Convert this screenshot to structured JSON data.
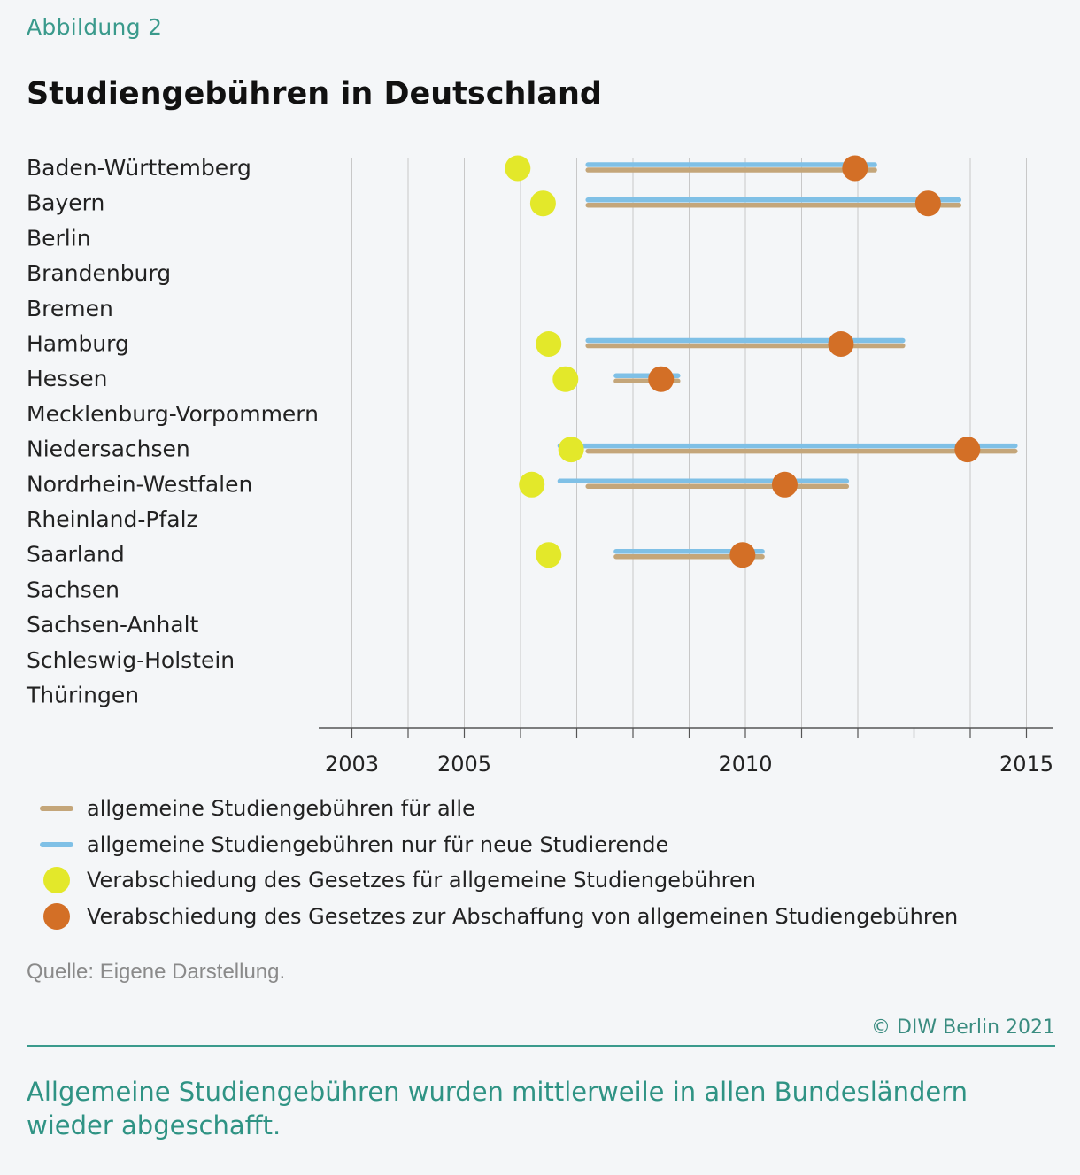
{
  "figure_label": "Abbildung 2",
  "title": "Studiengebühren in Deutschland",
  "colors": {
    "all": "#c4a67a",
    "new": "#7fc0e6",
    "intro": "#e3e82a",
    "abolish": "#d36f26",
    "grid": "#c8c8c8",
    "axis": "#555555"
  },
  "chart_data": {
    "type": "range-dot",
    "x_ticks": [
      2003,
      2005,
      2010,
      2015
    ],
    "xlim": [
      2002.4,
      2016
    ],
    "grid": true,
    "categories": [
      "Baden-Württemberg",
      "Bayern",
      "Berlin",
      "Brandenburg",
      "Bremen",
      "Hamburg",
      "Hessen",
      "Mecklenburg-Vorpommern",
      "Niedersachsen",
      "Nordrhein-Westfalen",
      "Rheinland-Pfalz",
      "Saarland",
      "Sachsen",
      "Sachsen-Anhalt",
      "Schleswig-Holstein",
      "Thüringen"
    ],
    "series": [
      {
        "name": "allgemeine Studiengebühren für alle",
        "kind": "range",
        "values": [
          [
            2007.2,
            2012.3
          ],
          [
            2007.2,
            2013.8
          ],
          null,
          null,
          null,
          [
            2007.2,
            2012.8
          ],
          [
            2007.7,
            2008.8
          ],
          null,
          [
            2007.2,
            2014.8
          ],
          [
            2007.2,
            2011.8
          ],
          null,
          [
            2007.7,
            2010.3
          ],
          null,
          null,
          null,
          null
        ]
      },
      {
        "name": "allgemeine Studiengebühren nur für neue Studierende",
        "kind": "range",
        "values": [
          [
            2007.2,
            2012.3
          ],
          [
            2007.2,
            2013.8
          ],
          null,
          null,
          null,
          [
            2007.2,
            2012.8
          ],
          [
            2007.7,
            2008.8
          ],
          null,
          [
            2006.7,
            2014.8
          ],
          [
            2006.7,
            2011.8
          ],
          null,
          [
            2007.7,
            2010.3
          ],
          null,
          null,
          null,
          null
        ]
      },
      {
        "name": "Verabschiedung des Gesetzes für allgemeine Studiengebühren",
        "kind": "dot",
        "values": [
          2005.95,
          2006.4,
          null,
          null,
          null,
          2006.5,
          2006.8,
          null,
          2006.9,
          2006.2,
          null,
          2006.5,
          null,
          null,
          null,
          null
        ]
      },
      {
        "name": "Verabschiedung des Gesetzes zur Abschaffung von allgemeinen Studiengebühren",
        "kind": "dot",
        "values": [
          2011.95,
          2013.25,
          null,
          null,
          null,
          2011.7,
          2008.5,
          null,
          2013.95,
          2010.7,
          null,
          2009.95,
          null,
          null,
          null,
          null
        ]
      }
    ]
  },
  "legend": [
    {
      "label": "allgemeine Studiengebühren für alle",
      "shape": "line",
      "color": "#c4a67a"
    },
    {
      "label": "allgemeine Studiengebühren nur für neue Studierende",
      "shape": "line",
      "color": "#7fc0e6"
    },
    {
      "label": "Verabschiedung des Gesetzes für allgemeine Studiengebühren",
      "shape": "dot",
      "color": "#e3e82a"
    },
    {
      "label": "Verabschiedung des Gesetzes zur Abschaffung von allgemeinen Studiengebühren",
      "shape": "dot",
      "color": "#d36f26"
    }
  ],
  "source": "Quelle: Eigene Darstellung.",
  "copyright": "© DIW Berlin 2021",
  "caption": "Allgemeine Studiengebühren wurden mittlerweile in allen Bundesländern wieder abgeschafft."
}
